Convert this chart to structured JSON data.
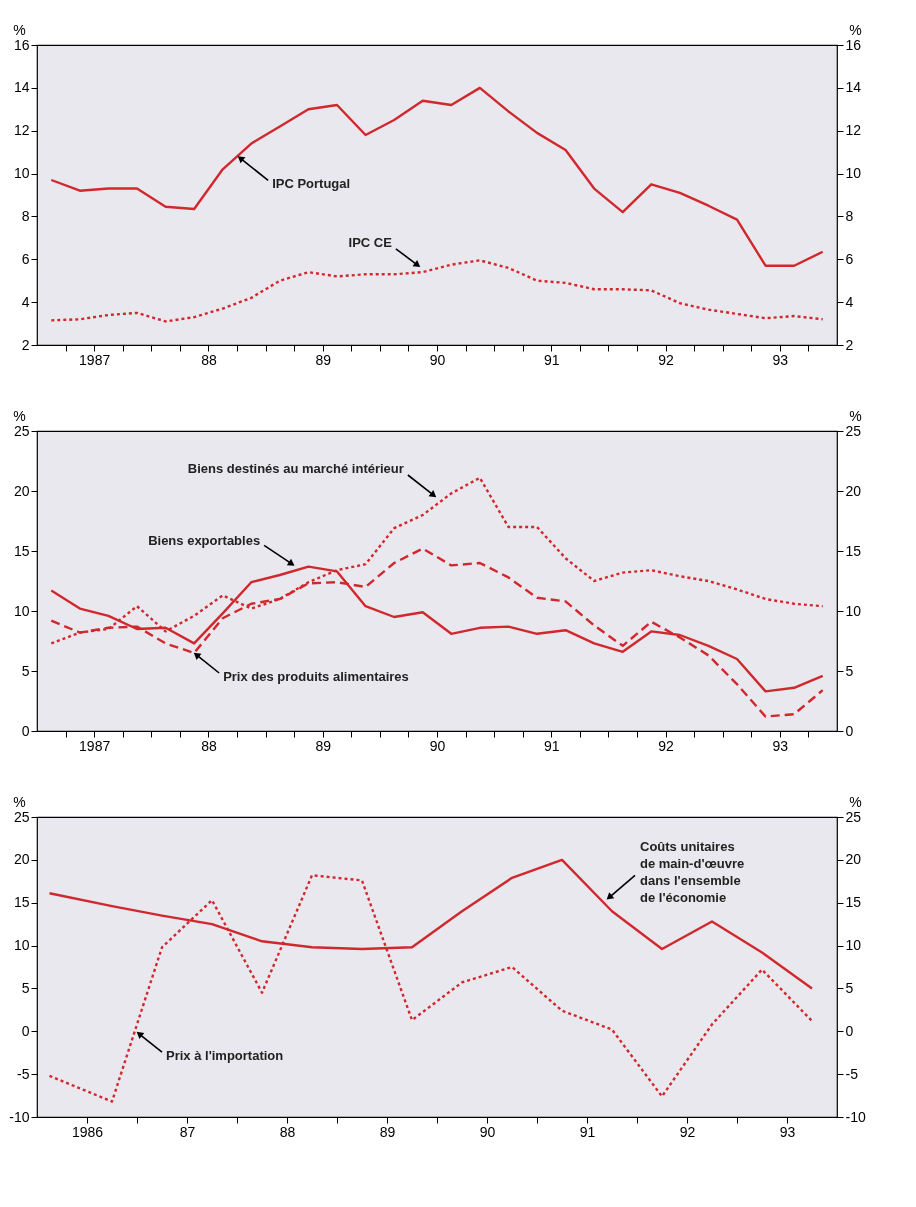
{
  "chart_data": [
    {
      "type": "line",
      "ylabel": "%",
      "y2label": "%",
      "x": [
        1986.625,
        1986.875,
        1987.125,
        1987.375,
        1987.625,
        1987.875,
        1988.125,
        1988.375,
        1988.625,
        1988.875,
        1989.125,
        1989.375,
        1989.625,
        1989.875,
        1990.125,
        1990.375,
        1990.625,
        1990.875,
        1991.125,
        1991.375,
        1991.625,
        1991.875,
        1992.125,
        1992.375,
        1992.625,
        1992.875,
        1993.125,
        1993.375
      ],
      "series": [
        {
          "color": "#d0282c",
          "line_style": "solid",
          "values": [
            9.7,
            9.2,
            9.3,
            9.3,
            8.45,
            8.35,
            10.2,
            11.4,
            12.2,
            13.0,
            13.2,
            11.8,
            12.5,
            13.4,
            13.2,
            14.0,
            12.9,
            11.9,
            11.1,
            9.3,
            8.2,
            9.5,
            9.1,
            8.5,
            7.85,
            5.7,
            5.7,
            6.35
          ]
        },
        {
          "color": "#d0282c",
          "line_style": "dotted",
          "values": [
            3.15,
            3.2,
            3.4,
            3.5,
            3.1,
            3.3,
            3.7,
            4.2,
            5.0,
            5.4,
            5.2,
            5.3,
            5.3,
            5.4,
            5.75,
            5.95,
            5.6,
            5.0,
            4.9,
            4.6,
            4.6,
            4.55,
            3.95,
            3.65,
            3.45,
            3.25,
            3.35,
            3.2
          ]
        }
      ],
      "annotations": [
        {
          "text": "IPC Portugal",
          "x": 1988.26,
          "y": 10.8
        },
        {
          "text": "IPC CE",
          "x": 1989.85,
          "y": 5.65
        }
      ],
      "xlim": [
        1986.5,
        1993.5
      ],
      "xticks": [
        {
          "value": 1986.75,
          "label": null
        },
        {
          "value": 1987,
          "label": "1987"
        },
        {
          "value": 1987.25,
          "label": null
        },
        {
          "value": 1987.5,
          "label": null
        },
        {
          "value": 1987.75,
          "label": null
        },
        {
          "value": 1988,
          "label": "88"
        },
        {
          "value": 1988.25,
          "label": null
        },
        {
          "value": 1988.5,
          "label": null
        },
        {
          "value": 1988.75,
          "label": null
        },
        {
          "value": 1989,
          "label": "89"
        },
        {
          "value": 1989.25,
          "label": null
        },
        {
          "value": 1989.5,
          "label": null
        },
        {
          "value": 1989.75,
          "label": null
        },
        {
          "value": 1990,
          "label": "90"
        },
        {
          "value": 1990.25,
          "label": null
        },
        {
          "value": 1990.5,
          "label": null
        },
        {
          "value": 1990.75,
          "label": null
        },
        {
          "value": 1991,
          "label": "91"
        },
        {
          "value": 1991.25,
          "label": null
        },
        {
          "value": 1991.5,
          "label": null
        },
        {
          "value": 1991.75,
          "label": null
        },
        {
          "value": 1992,
          "label": "92"
        },
        {
          "value": 1992.25,
          "label": null
        },
        {
          "value": 1992.5,
          "label": null
        },
        {
          "value": 1992.75,
          "label": null
        },
        {
          "value": 1993,
          "label": "93"
        },
        {
          "value": 1993.25,
          "label": null
        }
      ],
      "ylim": [
        2,
        16
      ],
      "yticks": [
        2,
        4,
        6,
        8,
        10,
        12,
        14,
        16
      ],
      "y2lim": [
        2,
        16
      ],
      "y2ticks": [
        2,
        4,
        6,
        8,
        10,
        12,
        14,
        16
      ],
      "grid": false
    },
    {
      "type": "line",
      "ylabel": "%",
      "y2label": "%",
      "x": [
        1986.625,
        1986.875,
        1987.125,
        1987.375,
        1987.625,
        1987.875,
        1988.125,
        1988.375,
        1988.625,
        1988.875,
        1989.125,
        1989.375,
        1989.625,
        1989.875,
        1990.125,
        1990.375,
        1990.625,
        1990.875,
        1991.125,
        1991.375,
        1991.625,
        1991.875,
        1992.125,
        1992.375,
        1992.625,
        1992.875,
        1993.125,
        1993.375
      ],
      "series": [
        {
          "color": "#d0282c",
          "line_style": "solid",
          "values": [
            11.7,
            10.2,
            9.6,
            8.5,
            8.6,
            7.3,
            9.8,
            12.4,
            13.0,
            13.7,
            13.3,
            10.4,
            9.5,
            9.9,
            8.1,
            8.6,
            8.7,
            8.1,
            8.4,
            7.3,
            6.6,
            8.3,
            8.0,
            7.1,
            6.0,
            3.3,
            3.6,
            4.6
          ]
        },
        {
          "color": "#d0282c",
          "line_style": "dotted",
          "values": [
            7.3,
            8.2,
            8.5,
            10.4,
            8.3,
            9.6,
            11.3,
            10.2,
            11.0,
            12.4,
            13.4,
            13.9,
            16.9,
            18.0,
            19.8,
            21.1,
            17.0,
            17.0,
            14.4,
            12.5,
            13.2,
            13.4,
            12.9,
            12.5,
            11.8,
            11.0,
            10.6,
            10.4
          ]
        },
        {
          "color": "#d0282c",
          "line_style": "dashed",
          "values": [
            9.2,
            8.2,
            8.6,
            8.7,
            7.3,
            6.5,
            9.4,
            10.6,
            11.0,
            12.3,
            12.4,
            12.0,
            14.0,
            15.2,
            13.8,
            14.0,
            12.8,
            11.1,
            10.8,
            8.8,
            7.1,
            9.1,
            7.8,
            6.3,
            3.9,
            1.2,
            1.4,
            3.4
          ]
        }
      ],
      "annotations": [
        {
          "text": "Biens destinés au marché intérieur",
          "x": 1989.99,
          "y": 19.5
        },
        {
          "text": "Biens exportables",
          "x": 1988.75,
          "y": 13.8
        },
        {
          "text": "Prix des produits alimentaires",
          "x": 1987.875,
          "y": 6.5
        }
      ],
      "xlim": [
        1986.5,
        1993.5
      ],
      "xticks": [
        {
          "value": 1986.75,
          "label": null
        },
        {
          "value": 1987,
          "label": "1987"
        },
        {
          "value": 1987.25,
          "label": null
        },
        {
          "value": 1987.5,
          "label": null
        },
        {
          "value": 1987.75,
          "label": null
        },
        {
          "value": 1988,
          "label": "88"
        },
        {
          "value": 1988.25,
          "label": null
        },
        {
          "value": 1988.5,
          "label": null
        },
        {
          "value": 1988.75,
          "label": null
        },
        {
          "value": 1989,
          "label": "89"
        },
        {
          "value": 1989.25,
          "label": null
        },
        {
          "value": 1989.5,
          "label": null
        },
        {
          "value": 1989.75,
          "label": null
        },
        {
          "value": 1990,
          "label": "90"
        },
        {
          "value": 1990.25,
          "label": null
        },
        {
          "value": 1990.5,
          "label": null
        },
        {
          "value": 1990.75,
          "label": null
        },
        {
          "value": 1991,
          "label": "91"
        },
        {
          "value": 1991.25,
          "label": null
        },
        {
          "value": 1991.5,
          "label": null
        },
        {
          "value": 1991.75,
          "label": null
        },
        {
          "value": 1992,
          "label": "92"
        },
        {
          "value": 1992.25,
          "label": null
        },
        {
          "value": 1992.5,
          "label": null
        },
        {
          "value": 1992.75,
          "label": null
        },
        {
          "value": 1993,
          "label": "93"
        },
        {
          "value": 1993.25,
          "label": null
        }
      ],
      "ylim": [
        0,
        25
      ],
      "yticks": [
        0,
        5,
        10,
        15,
        20,
        25
      ],
      "y2lim": [
        0,
        25
      ],
      "y2ticks": [
        0,
        5,
        10,
        15,
        20,
        25
      ],
      "grid": false
    },
    {
      "type": "line",
      "ylabel": "%",
      "y2label": "%",
      "x": [
        1985.625,
        1986.25,
        1986.75,
        1987.25,
        1987.75,
        1988.25,
        1988.75,
        1989.25,
        1989.75,
        1990.25,
        1990.75,
        1991.25,
        1991.75,
        1992.25,
        1992.75,
        1993.25
      ],
      "series": [
        {
          "color": "#d0282c",
          "line_style": "solid",
          "values": [
            16.1,
            14.6,
            13.5,
            12.5,
            10.5,
            9.8,
            9.6,
            9.8,
            14.0,
            17.9,
            20.0,
            14.0,
            9.6,
            12.8,
            9.2,
            5.0
          ]
        },
        {
          "color": "#d0282c",
          "line_style": "dotted",
          "values": [
            -5.2,
            -8.2,
            9.8,
            15.3,
            4.5,
            18.2,
            17.6,
            1.3,
            5.7,
            7.5,
            2.4,
            0.2,
            -7.6,
            0.8,
            7.2,
            1.2
          ]
        }
      ],
      "annotations": [
        {
          "text": "Coûts unitaires\nde main-d'œuvre\ndans l'ensemble\nde l'économie",
          "x": 1991.2,
          "y": 15.4
        },
        {
          "text": "Prix à l'importation",
          "x": 1986.5,
          "y": -0.1
        }
      ],
      "xlim": [
        1985.5,
        1993.5
      ],
      "xticks": [
        {
          "value": 1986,
          "label": "1986"
        },
        {
          "value": 1986.5,
          "label": null
        },
        {
          "value": 1987,
          "label": "87"
        },
        {
          "value": 1987.5,
          "label": null
        },
        {
          "value": 1988,
          "label": "88"
        },
        {
          "value": 1988.5,
          "label": null
        },
        {
          "value": 1989,
          "label": "89"
        },
        {
          "value": 1989.5,
          "label": null
        },
        {
          "value": 1990,
          "label": "90"
        },
        {
          "value": 1990.5,
          "label": null
        },
        {
          "value": 1991,
          "label": "91"
        },
        {
          "value": 1991.5,
          "label": null
        },
        {
          "value": 1992,
          "label": "92"
        },
        {
          "value": 1992.5,
          "label": null
        },
        {
          "value": 1993,
          "label": "93"
        }
      ],
      "ylim": [
        -10,
        25
      ],
      "yticks": [
        -10,
        -5,
        0,
        5,
        10,
        15,
        20,
        25
      ],
      "y2lim": [
        -10,
        25
      ],
      "y2ticks": [
        -10,
        -5,
        0,
        5,
        10,
        15,
        20,
        25
      ],
      "grid": false
    }
  ]
}
